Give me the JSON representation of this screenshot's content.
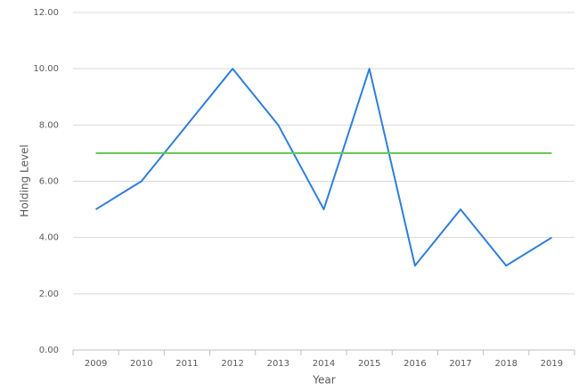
{
  "chart_data": {
    "type": "line",
    "x_label": "Year",
    "y_label": "Holding Level",
    "categories": [
      "2009",
      "2010",
      "2011",
      "2012",
      "2013",
      "2014",
      "2015",
      "2016",
      "2017",
      "2018",
      "2019"
    ],
    "series": [
      {
        "color": "#2f7ed8",
        "values": [
          5,
          6,
          8,
          10,
          8,
          5,
          10,
          3,
          5,
          3,
          4
        ]
      },
      {
        "color": "#5ec94b",
        "values": [
          7,
          7,
          7,
          7,
          7,
          7,
          7,
          7,
          7,
          7,
          7
        ]
      }
    ],
    "ylim": [
      0,
      12
    ],
    "yticks": [
      {
        "value": 0,
        "label": "0.00"
      },
      {
        "value": 2,
        "label": "2.00"
      },
      {
        "value": 4,
        "label": "4.00"
      },
      {
        "value": 6,
        "label": "6.00"
      },
      {
        "value": 8,
        "label": "8.00"
      },
      {
        "value": 10,
        "label": "10.00"
      },
      {
        "value": 12,
        "label": "12.00"
      }
    ],
    "grid": true
  }
}
